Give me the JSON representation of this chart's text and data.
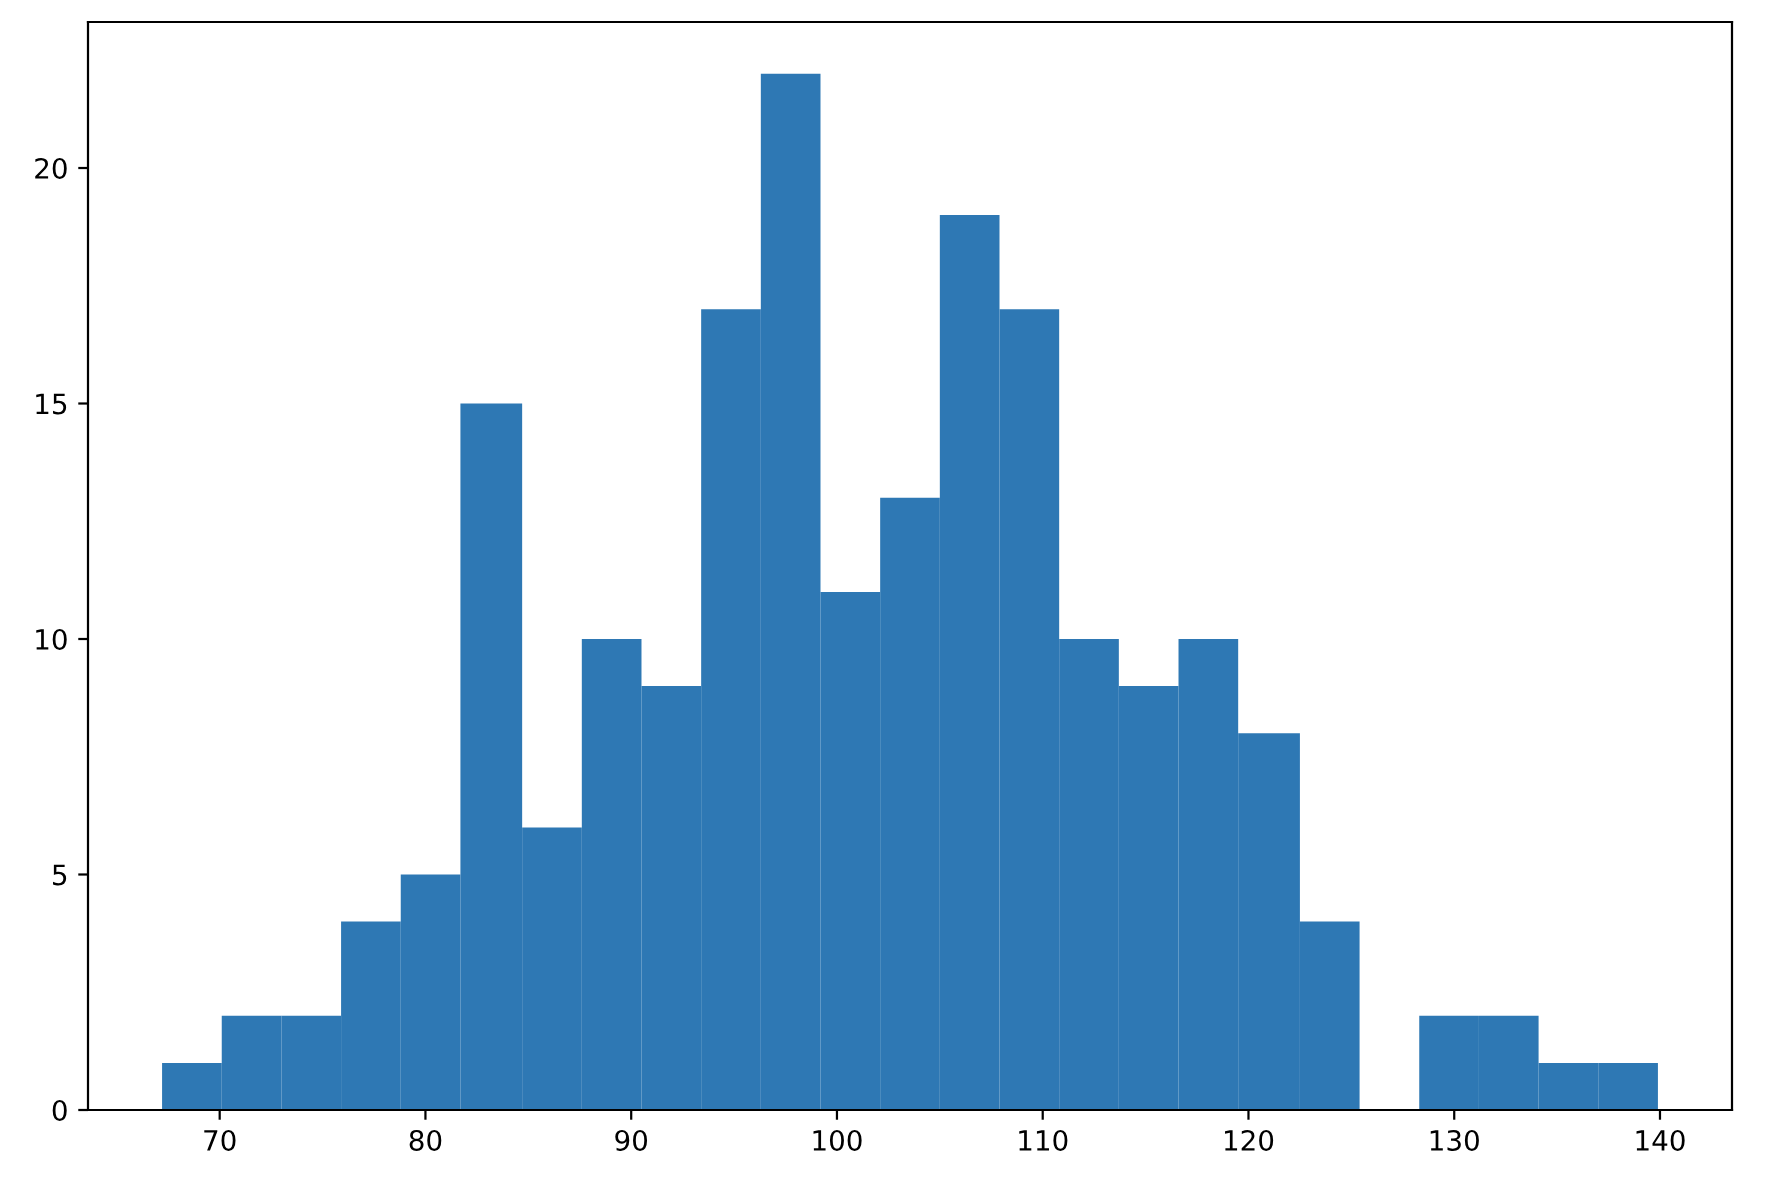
{
  "chart_data": {
    "type": "histogram",
    "bins": [
      67.2,
      70.1,
      73.0,
      75.9,
      78.8,
      81.7,
      84.7,
      87.6,
      90.5,
      93.4,
      96.3,
      99.2,
      102.1,
      105.0,
      107.9,
      110.8,
      113.7,
      116.6,
      119.5,
      122.5,
      125.4,
      128.3,
      131.2,
      134.1,
      137.0,
      139.9
    ],
    "values": [
      1,
      2,
      2,
      4,
      5,
      15,
      6,
      10,
      9,
      17,
      22,
      11,
      13,
      19,
      17,
      10,
      9,
      10,
      8,
      4,
      0,
      2,
      2,
      1,
      1
    ],
    "color": "#2e78b4",
    "xlim": [
      63.6,
      143.5
    ],
    "xticks": [
      70,
      80,
      90,
      100,
      110,
      120,
      130,
      140
    ],
    "ylim": [
      0,
      23.1
    ],
    "yticks": [
      0,
      5,
      10,
      15,
      20
    ],
    "grid": false
  }
}
